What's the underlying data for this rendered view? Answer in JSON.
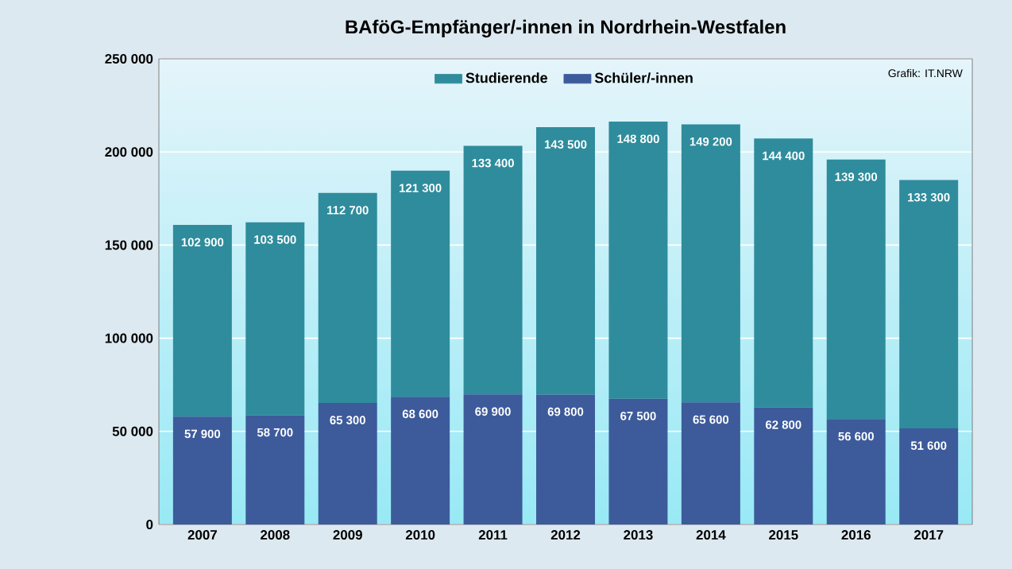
{
  "chart_data": {
    "type": "bar",
    "title": "BAföG-Empfänger/-innen in Nordrhein-Westfalen",
    "stacked": true,
    "categories": [
      "2007",
      "2008",
      "2009",
      "2010",
      "2011",
      "2012",
      "2013",
      "2014",
      "2015",
      "2016",
      "2017"
    ],
    "series": [
      {
        "name": "Schüler/-innen",
        "color": "#3d5b9b",
        "values": [
          57900,
          58700,
          65300,
          68600,
          69900,
          69800,
          67500,
          65600,
          62800,
          56600,
          51600
        ],
        "value_labels": [
          "57 900",
          "58 700",
          "65 300",
          "68 600",
          "69 900",
          "69 800",
          "67 500",
          "65 600",
          "62 800",
          "56 600",
          "51 600"
        ]
      },
      {
        "name": "Studierende",
        "color": "#2f8c9c",
        "values": [
          102900,
          103500,
          112700,
          121300,
          133400,
          143500,
          148800,
          149200,
          144400,
          139300,
          133300
        ],
        "value_labels": [
          "102 900",
          "103 500",
          "112 700",
          "121 300",
          "133 400",
          "143 500",
          "148 800",
          "149 200",
          "144 400",
          "139 300",
          "133 300"
        ]
      }
    ],
    "ylim": [
      0,
      250000
    ],
    "yticks": [
      {
        "value": 0,
        "label": "0"
      },
      {
        "value": 50000,
        "label": "50 000"
      },
      {
        "value": 100000,
        "label": "100 000"
      },
      {
        "value": 150000,
        "label": "150 000"
      },
      {
        "value": 200000,
        "label": "200 000"
      },
      {
        "value": 250000,
        "label": "250 000"
      }
    ],
    "grid": "y",
    "legend": "top",
    "annotations": [
      "Grafik: IT.NRW"
    ]
  }
}
